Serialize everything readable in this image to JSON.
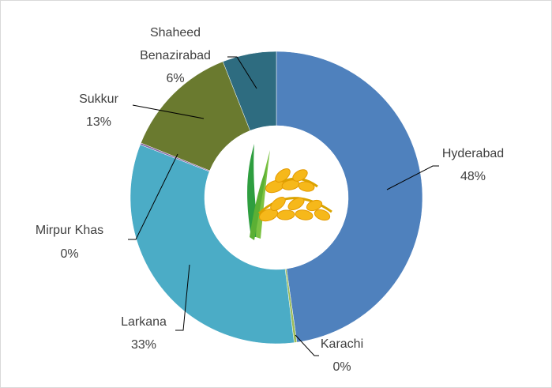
{
  "chart_data": {
    "type": "donut",
    "categories": [
      "Hyderabad",
      "Karachi",
      "Larkana",
      "Mirpur Khas",
      "Sukkur",
      "Shaheed Benazirabad"
    ],
    "values": [
      48,
      0.3,
      33,
      0.2,
      13,
      6
    ],
    "value_labels": [
      "48%",
      "0%",
      "33%",
      "0%",
      "13%",
      "6%"
    ],
    "colors": [
      "#4f81bd",
      "#9bbb59",
      "#4bacc6",
      "#8064a2",
      "#6a7a2f",
      "#2e6c80"
    ]
  }
}
